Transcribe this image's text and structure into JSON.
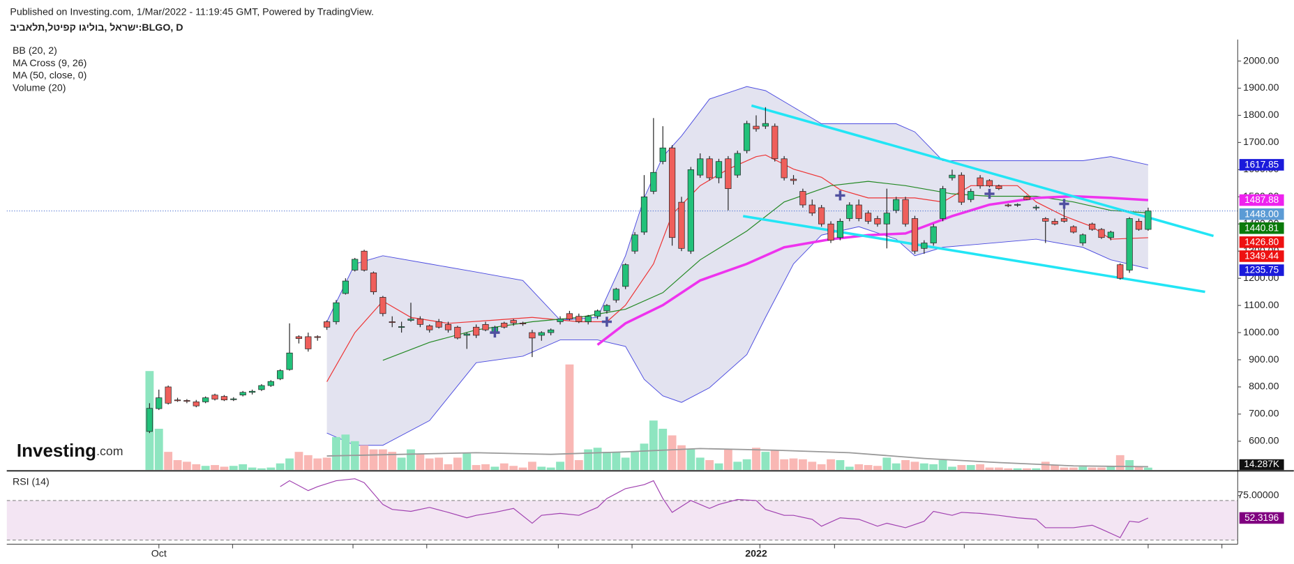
{
  "header": "Published on Investing.com, 1/Mar/2022 - 11:19:45 GMT, Powered by TradingView.",
  "chart_data": {
    "type": "candlestick",
    "title": "ישראל ,בוליגו קפיטל,תלאביב:BLGO, D",
    "indicators": [
      "BB (20, 2)",
      "MA Cross (9, 26)",
      "MA (50, close, 0)",
      "Volume (20)"
    ],
    "logo": [
      "Investing",
      ".com"
    ],
    "categories": [
      null,
      "Oct",
      null,
      null,
      null,
      null,
      null,
      null,
      null,
      null,
      null,
      null,
      null,
      null,
      null,
      null,
      null,
      null,
      null,
      null,
      null,
      null,
      null,
      null,
      null,
      null,
      null,
      null,
      null,
      null,
      null,
      null,
      null,
      null,
      null,
      null,
      null,
      null,
      null,
      null,
      null,
      null,
      null,
      null,
      null,
      null,
      null,
      null,
      null,
      null,
      null,
      null,
      null,
      null,
      null,
      null,
      null,
      null,
      null,
      null,
      null,
      null,
      null,
      null,
      null,
      "2022",
      null,
      null,
      null,
      null,
      null,
      null,
      null,
      null,
      null,
      null,
      null,
      null,
      null,
      null,
      null,
      null,
      null,
      null,
      null,
      null,
      null,
      null,
      null,
      null,
      null,
      null,
      null,
      null,
      null,
      null,
      null,
      null,
      null,
      null,
      null,
      null,
      null,
      null,
      null,
      null,
      null,
      null
    ],
    "xticks": [
      1,
      8.9,
      21.8,
      29.7,
      43.8,
      51.7,
      65.4,
      73.4,
      87.3,
      95.2,
      107,
      114.9
    ],
    "xlim": [
      -15.3,
      116.6
    ],
    "ylim": [
      494,
      2079
    ],
    "yticks": [
      {
        "value": 600,
        "label": "600.00"
      },
      {
        "value": 700,
        "label": "700.00"
      },
      {
        "value": 800,
        "label": "800.00"
      },
      {
        "value": 900,
        "label": "900.00"
      },
      {
        "value": 1000,
        "label": "1000.00"
      },
      {
        "value": 1100,
        "label": "1100.00"
      },
      {
        "value": 1200,
        "label": "1200.00"
      },
      {
        "value": 1300,
        "label": "1300.00"
      },
      {
        "value": 1400,
        "label": "1400.00"
      },
      {
        "value": 1500,
        "label": "1500.00"
      },
      {
        "value": 1600,
        "label": "1600.00"
      },
      {
        "value": 1700,
        "label": "1700.00"
      },
      {
        "value": 1800,
        "label": "1800.00"
      },
      {
        "value": 1900,
        "label": "1900.00"
      },
      {
        "value": 2000,
        "label": "2000.00"
      }
    ],
    "up_color": "#22c17a",
    "down_color": "#ef5f5b",
    "open": [
      636,
      720,
      800,
      752,
      750,
      745,
      745,
      770,
      765,
      755,
      770,
      780,
      790,
      805,
      830,
      864,
      985,
      985,
      985,
      1040,
      1040,
      1144,
      1230,
      1300,
      1220,
      1130,
      1040,
      1020,
      1045,
      1050,
      1025,
      1040,
      1030,
      1020,
      990,
      1020,
      1030,
      1000,
      1035,
      1045,
      1035,
      1000,
      990,
      1000,
      1040,
      1070,
      1060,
      1040,
      1060,
      1080,
      1120,
      1170,
      1300,
      1370,
      1520,
      1630,
      1680,
      1480,
      1300,
      1580,
      1640,
      1570,
      1640,
      1580,
      1670,
      1760,
      1760,
      1760,
      1640,
      1565,
      1520,
      1470,
      1460,
      1400,
      1350,
      1420,
      1470,
      1440,
      1420,
      1400,
      1450,
      1490,
      1420,
      1310,
      1330,
      1420,
      1570,
      1580,
      1490,
      1570,
      1560,
      1540,
      1470,
      1470,
      1500,
      1460,
      1420,
      1410,
      1420,
      1390,
      1330,
      1400,
      1380,
      1350,
      1250,
      1230,
      1410,
      1380
    ],
    "high": [
      740,
      790,
      805,
      760,
      755,
      752,
      765,
      775,
      770,
      762,
      785,
      790,
      810,
      825,
      865,
      1034,
      990,
      1000,
      990,
      1045,
      1120,
      1200,
      1275,
      1305,
      1225,
      1135,
      1060,
      1040,
      1110,
      1060,
      1030,
      1050,
      1040,
      1025,
      1000,
      1030,
      1040,
      1025,
      1040,
      1050,
      1040,
      1010,
      1005,
      1015,
      1060,
      1080,
      1070,
      1065,
      1085,
      1105,
      1165,
      1255,
      1370,
      1580,
      1790,
      1760,
      1690,
      1500,
      1610,
      1660,
      1650,
      1640,
      1650,
      1670,
      1780,
      1800,
      1830,
      1770,
      1650,
      1580,
      1530,
      1490,
      1470,
      1410,
      1420,
      1480,
      1490,
      1450,
      1430,
      1530,
      1500,
      1500,
      1430,
      1340,
      1400,
      1540,
      1600,
      1590,
      1530,
      1580,
      1565,
      1545,
      1475,
      1476,
      1505,
      1470,
      1425,
      1420,
      1460,
      1395,
      1365,
      1405,
      1385,
      1375,
      1255,
      1425,
      1420,
      1460
    ],
    "low": [
      630,
      715,
      735,
      745,
      740,
      725,
      740,
      750,
      748,
      748,
      765,
      772,
      785,
      800,
      825,
      860,
      960,
      930,
      970,
      1010,
      1030,
      1140,
      1225,
      1225,
      1140,
      1060,
      1020,
      1000,
      1040,
      1020,
      1000,
      1015,
      1000,
      975,
      940,
      980,
      1005,
      990,
      1015,
      1025,
      1025,
      910,
      970,
      990,
      1030,
      1045,
      1035,
      1030,
      1050,
      1070,
      1110,
      1160,
      1290,
      1360,
      1510,
      1620,
      1320,
      1300,
      1290,
      1570,
      1560,
      1550,
      1450,
      1570,
      1660,
      1740,
      1750,
      1630,
      1560,
      1545,
      1460,
      1430,
      1390,
      1330,
      1340,
      1410,
      1410,
      1400,
      1390,
      1310,
      1440,
      1390,
      1290,
      1290,
      1320,
      1410,
      1560,
      1470,
      1480,
      1530,
      1535,
      1525,
      1462,
      1463,
      1488,
      1450,
      1330,
      1395,
      1405,
      1365,
      1320,
      1375,
      1345,
      1340,
      1195,
      1220,
      1375,
      1375
    ],
    "close": [
      721,
      760,
      740,
      750,
      748,
      730,
      760,
      755,
      752,
      756,
      780,
      784,
      805,
      820,
      860,
      925,
      978,
      940,
      982,
      1020,
      1110,
      1190,
      1270,
      1230,
      1150,
      1070,
      1038,
      1022,
      1050,
      1030,
      1010,
      1020,
      1010,
      980,
      995,
      990,
      1010,
      1020,
      1020,
      1035,
      1032,
      980,
      1000,
      1010,
      1050,
      1050,
      1040,
      1060,
      1080,
      1100,
      1160,
      1250,
      1360,
      1500,
      1590,
      1680,
      1350,
      1310,
      1600,
      1640,
      1570,
      1630,
      1530,
      1660,
      1770,
      1750,
      1770,
      1640,
      1570,
      1560,
      1470,
      1440,
      1400,
      1340,
      1410,
      1470,
      1420,
      1410,
      1400,
      1440,
      1490,
      1400,
      1300,
      1330,
      1390,
      1530,
      1580,
      1480,
      1520,
      1540,
      1540,
      1530,
      1468,
      1472,
      1490,
      1462,
      1410,
      1400,
      1410,
      1370,
      1360,
      1380,
      1350,
      1370,
      1200,
      1420,
      1380,
      1448
    ],
    "volume": {
      "ylim": [
        0,
        2610
      ],
      "up_color": "#8ee5c0",
      "down_color": "#f9b7b4",
      "values": [
        600,
        250,
        110,
        60,
        50,
        35,
        25,
        30,
        20,
        25,
        35,
        15,
        10,
        15,
        40,
        70,
        110,
        90,
        70,
        75,
        200,
        215,
        175,
        150,
        125,
        125,
        110,
        75,
        125,
        100,
        70,
        75,
        35,
        75,
        100,
        30,
        35,
        20,
        40,
        25,
        15,
        50,
        20,
        15,
        50,
        640,
        60,
        125,
        135,
        110,
        110,
        75,
        110,
        160,
        300,
        250,
        210,
        150,
        125,
        75,
        60,
        40,
        125,
        50,
        65,
        135,
        110,
        120,
        65,
        70,
        65,
        50,
        35,
        65,
        60,
        20,
        35,
        30,
        25,
        75,
        40,
        60,
        50,
        40,
        35,
        60,
        20,
        30,
        30,
        35,
        15,
        15,
        10,
        10,
        10,
        10,
        50,
        30,
        15,
        15,
        20,
        15,
        15,
        20,
        90,
        60,
        20,
        14.287
      ],
      "last_label": {
        "value": 14.287,
        "label": "14.287K"
      },
      "ma": {
        "color": "#999999",
        "x": [
          19,
          27,
          35,
          43,
          51,
          59,
          67,
          75,
          83,
          91,
          99,
          107
        ],
        "values": [
          85,
          95,
          105,
          95,
          110,
          130,
          120,
          105,
          70,
          45,
          25,
          20
        ]
      }
    },
    "bb": {
      "color": "#4a4ae0",
      "fill": "#e3e3f0",
      "x": [
        19,
        22,
        25,
        30,
        35,
        40,
        44,
        48,
        51,
        53,
        55,
        57,
        60,
        64,
        66,
        69,
        72,
        76,
        80,
        82,
        85,
        90,
        95,
        100,
        103,
        107
      ],
      "upper": [
        1040,
        1253,
        1283,
        1253,
        1223,
        1192,
        1046,
        1056,
        1283,
        1496,
        1648,
        1724,
        1860,
        1906,
        1891,
        1830,
        1769,
        1769,
        1769,
        1739,
        1633,
        1633,
        1633,
        1633,
        1648,
        1617.85
      ],
      "lower": [
        630,
        585,
        585,
        676,
        889,
        913,
        973,
        973,
        949,
        828,
        767,
        743,
        797,
        919,
        1056,
        1253,
        1359,
        1390,
        1344,
        1283,
        1314,
        1329,
        1344,
        1314,
        1268,
        1235.75
      ]
    },
    "lines": [
      {
        "color": "#ee3333",
        "width": 1,
        "x": [
          19,
          22,
          25,
          28,
          32,
          37,
          41,
          46,
          49,
          51,
          54,
          56,
          59,
          62,
          65,
          66,
          69,
          72,
          74,
          77,
          80,
          82,
          85,
          88,
          90,
          93,
          95,
          98,
          101,
          103,
          107
        ],
        "values": [
          819,
          1000,
          1116,
          1056,
          1034,
          1046,
          1056,
          1040,
          1040,
          1101,
          1253,
          1435,
          1541,
          1602,
          1648,
          1654,
          1602,
          1572,
          1526,
          1496,
          1496,
          1496,
          1481,
          1541,
          1541,
          1541,
          1481,
          1429,
          1390,
          1344,
          1349.44
        ]
      },
      {
        "color": "#228822",
        "width": 1,
        "x": [
          25,
          30,
          35,
          41,
          46,
          51,
          55,
          59,
          64,
          68,
          73,
          77,
          81,
          86,
          90,
          95,
          99,
          103,
          107
        ],
        "values": [
          898,
          964,
          1010,
          1040,
          1056,
          1086,
          1147,
          1268,
          1374,
          1481,
          1541,
          1557,
          1541,
          1511,
          1502,
          1502,
          1481,
          1450,
          1440.81
        ]
      },
      {
        "color": "#ee33ee",
        "width": 3,
        "x": [
          48,
          51,
          55,
          59,
          64,
          68,
          73,
          77,
          81,
          86,
          90,
          95,
          99,
          103,
          107
        ],
        "values": [
          955,
          1034,
          1101,
          1192,
          1253,
          1314,
          1344,
          1359,
          1365,
          1429,
          1471,
          1496,
          1502,
          1496,
          1487.88
        ]
      }
    ],
    "crosses": {
      "color": "#5050a0",
      "x": [
        37,
        49,
        74,
        90,
        98
      ],
      "values": [
        1000,
        1040,
        1505,
        1511,
        1474
      ]
    },
    "trendlines": {
      "color": "#22e5f5",
      "items": [
        {
          "x": [
            64.5,
            114
          ],
          "values": [
            1836,
            1356
          ]
        },
        {
          "x": [
            63.6,
            113.1
          ],
          "values": [
            1429,
            1150
          ]
        }
      ]
    },
    "current_price": 1448,
    "price_labels": [
      {
        "value": 1617.85,
        "label": "1617.85",
        "color": "#1a1adb"
      },
      {
        "value": 1487.88,
        "label": "1487.88",
        "color": "#ee22ee"
      },
      {
        "value": 1448,
        "label": "1448.00",
        "color": "#5b9bd5"
      },
      {
        "value": 1440.81,
        "label": "1440.81",
        "color": "#0a7a0a"
      },
      {
        "value": 1426.8,
        "label": "1426.80",
        "color": "#ee1111"
      },
      {
        "value": 1349.44,
        "label": "1349.44",
        "color": "#ee1111"
      },
      {
        "value": 1235.75,
        "label": "1235.75",
        "color": "#1a1adb"
      }
    ],
    "rsi": {
      "name": "RSI (14)",
      "color": "#a040b0",
      "label_color": "#800080",
      "band_fill": "#f3e5f3",
      "ylim": [
        25.8,
        97.5
      ],
      "bands": [
        30,
        70
      ],
      "yticks": [
        {
          "value": 75,
          "label": "75.00000"
        }
      ],
      "x": [
        14,
        15,
        17,
        18,
        20,
        22,
        23,
        25,
        26,
        28,
        30,
        32,
        34,
        35,
        37,
        39,
        41,
        42,
        44,
        46,
        48,
        49,
        51,
        53,
        54,
        55,
        56,
        58,
        60,
        61,
        63,
        65,
        66,
        68,
        69,
        71,
        72,
        74,
        76,
        78,
        79,
        81,
        83,
        84,
        86,
        87,
        89,
        91,
        93,
        95,
        96,
        99,
        101,
        102,
        104,
        105,
        106,
        107
      ],
      "values": [
        84,
        90,
        80,
        84,
        90,
        92,
        88,
        66,
        61,
        59,
        63,
        58,
        52.5,
        55,
        58,
        62,
        47,
        55,
        57,
        55,
        63,
        72,
        82,
        86,
        90,
        72,
        58,
        70,
        62,
        66,
        71,
        70,
        61,
        55,
        55,
        51,
        44,
        52.5,
        51,
        44,
        47,
        42.5,
        49,
        59,
        55,
        58,
        57,
        55,
        52.5,
        51,
        42.5,
        42.5,
        45,
        41,
        32.5,
        49,
        48,
        52.3196
      ]
    }
  }
}
